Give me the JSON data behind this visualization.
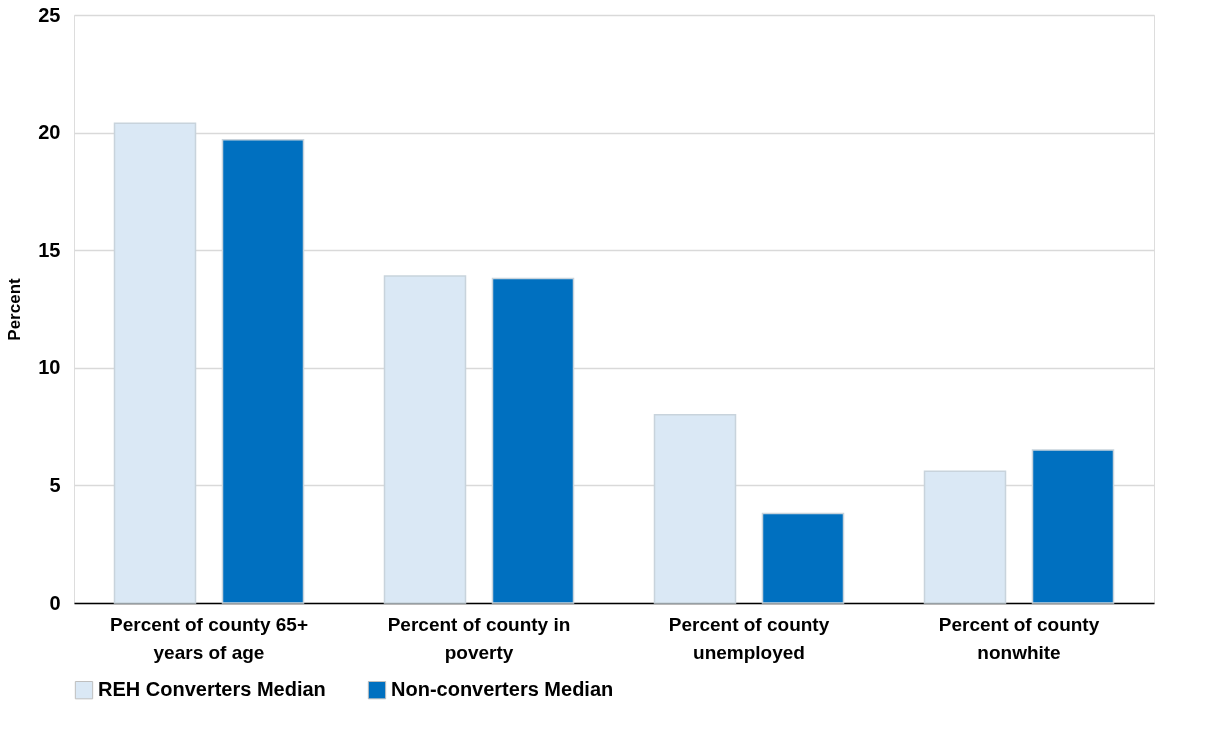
{
  "chart_data": {
    "type": "bar",
    "ylabel": "Percent",
    "categories": [
      "Percent of county 65+ years of age",
      "Percent of county in poverty",
      "Percent of county unemployed",
      "Percent of county nonwhite"
    ],
    "series": [
      {
        "name": "REH Converters Median",
        "color": "#dae8f5",
        "values": [
          20.4,
          13.9,
          8.0,
          5.6
        ]
      },
      {
        "name": "Non-converters Median",
        "color": "#0070c0",
        "values": [
          19.7,
          13.8,
          3.8,
          6.5
        ]
      }
    ],
    "ylim": [
      0,
      25
    ],
    "yticks": [
      0,
      5,
      10,
      15,
      20,
      25
    ],
    "grid": "y",
    "legend": "bottom"
  }
}
